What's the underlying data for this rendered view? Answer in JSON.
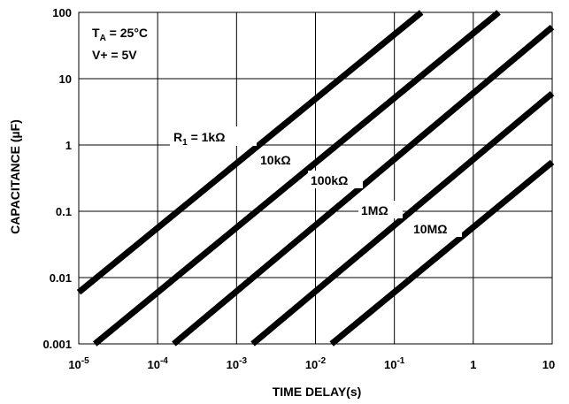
{
  "chart_data": {
    "type": "line",
    "title": "",
    "xlabel": "TIME DELAY(s)",
    "ylabel": "CAPACITANCE (µF)",
    "x_scale": "log",
    "y_scale": "log",
    "xlim": [
      1e-05,
      10
    ],
    "ylim": [
      0.001,
      100
    ],
    "grid": true,
    "x_ticks": [
      {
        "value": 1e-05,
        "base": "10",
        "exp": "-5"
      },
      {
        "value": 0.0001,
        "base": "10",
        "exp": "-4"
      },
      {
        "value": 0.001,
        "base": "10",
        "exp": "-3"
      },
      {
        "value": 0.01,
        "base": "10",
        "exp": "-2"
      },
      {
        "value": 0.1,
        "base": "10",
        "exp": "-1"
      },
      {
        "value": 1,
        "base": "1",
        "exp": ""
      },
      {
        "value": 10,
        "base": "10",
        "exp": ""
      }
    ],
    "y_ticks": [
      {
        "value": 0.001,
        "label": "0.001"
      },
      {
        "value": 0.01,
        "label": "0.01"
      },
      {
        "value": 0.1,
        "label": "0.1"
      },
      {
        "value": 1,
        "label": "1"
      },
      {
        "value": 10,
        "label": "10"
      },
      {
        "value": 100,
        "label": "100"
      }
    ],
    "annotations": {
      "temp_sym": "T",
      "temp_sub": "A",
      "temp_val": " = 25°C",
      "supply": "V+ = 5V"
    },
    "series": [
      {
        "label": "R",
        "label_sub": "1",
        "label_rest": " = 1kΩ",
        "x": [
          1e-05,
          0.22
        ],
        "y": [
          0.006,
          100
        ]
      },
      {
        "label": "10kΩ",
        "x": [
          1.6e-05,
          2.1
        ],
        "y": [
          0.001,
          100
        ]
      },
      {
        "label": "100kΩ",
        "x": [
          0.00016,
          10
        ],
        "y": [
          0.001,
          60
        ]
      },
      {
        "label": "1MΩ",
        "x": [
          0.0016,
          10
        ],
        "y": [
          0.001,
          6
        ]
      },
      {
        "label": "10MΩ",
        "x": [
          0.016,
          10
        ],
        "y": [
          0.001,
          0.55
        ]
      }
    ]
  }
}
